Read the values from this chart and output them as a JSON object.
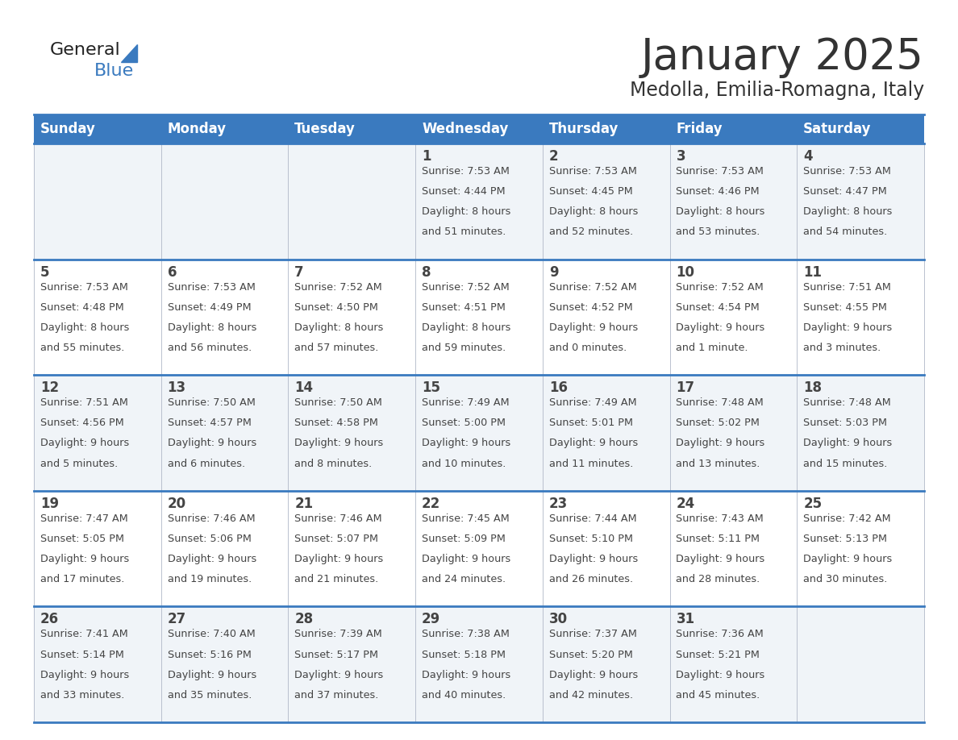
{
  "title": "January 2025",
  "subtitle": "Medolla, Emilia-Romagna, Italy",
  "days_of_week": [
    "Sunday",
    "Monday",
    "Tuesday",
    "Wednesday",
    "Thursday",
    "Friday",
    "Saturday"
  ],
  "header_bg": "#3a7abf",
  "header_text": "#ffffff",
  "cell_bg_odd": "#f0f4f8",
  "cell_bg_even": "#ffffff",
  "border_color": "#3a7abf",
  "text_color": "#444444",
  "title_color": "#333333",
  "calendar_data": [
    [
      {
        "day": "",
        "sunrise": "",
        "sunset": "",
        "daylight": ""
      },
      {
        "day": "",
        "sunrise": "",
        "sunset": "",
        "daylight": ""
      },
      {
        "day": "",
        "sunrise": "",
        "sunset": "",
        "daylight": ""
      },
      {
        "day": "1",
        "sunrise": "7:53 AM",
        "sunset": "4:44 PM",
        "daylight": "8 hours\nand 51 minutes."
      },
      {
        "day": "2",
        "sunrise": "7:53 AM",
        "sunset": "4:45 PM",
        "daylight": "8 hours\nand 52 minutes."
      },
      {
        "day": "3",
        "sunrise": "7:53 AM",
        "sunset": "4:46 PM",
        "daylight": "8 hours\nand 53 minutes."
      },
      {
        "day": "4",
        "sunrise": "7:53 AM",
        "sunset": "4:47 PM",
        "daylight": "8 hours\nand 54 minutes."
      }
    ],
    [
      {
        "day": "5",
        "sunrise": "7:53 AM",
        "sunset": "4:48 PM",
        "daylight": "8 hours\nand 55 minutes."
      },
      {
        "day": "6",
        "sunrise": "7:53 AM",
        "sunset": "4:49 PM",
        "daylight": "8 hours\nand 56 minutes."
      },
      {
        "day": "7",
        "sunrise": "7:52 AM",
        "sunset": "4:50 PM",
        "daylight": "8 hours\nand 57 minutes."
      },
      {
        "day": "8",
        "sunrise": "7:52 AM",
        "sunset": "4:51 PM",
        "daylight": "8 hours\nand 59 minutes."
      },
      {
        "day": "9",
        "sunrise": "7:52 AM",
        "sunset": "4:52 PM",
        "daylight": "9 hours\nand 0 minutes."
      },
      {
        "day": "10",
        "sunrise": "7:52 AM",
        "sunset": "4:54 PM",
        "daylight": "9 hours\nand 1 minute."
      },
      {
        "day": "11",
        "sunrise": "7:51 AM",
        "sunset": "4:55 PM",
        "daylight": "9 hours\nand 3 minutes."
      }
    ],
    [
      {
        "day": "12",
        "sunrise": "7:51 AM",
        "sunset": "4:56 PM",
        "daylight": "9 hours\nand 5 minutes."
      },
      {
        "day": "13",
        "sunrise": "7:50 AM",
        "sunset": "4:57 PM",
        "daylight": "9 hours\nand 6 minutes."
      },
      {
        "day": "14",
        "sunrise": "7:50 AM",
        "sunset": "4:58 PM",
        "daylight": "9 hours\nand 8 minutes."
      },
      {
        "day": "15",
        "sunrise": "7:49 AM",
        "sunset": "5:00 PM",
        "daylight": "9 hours\nand 10 minutes."
      },
      {
        "day": "16",
        "sunrise": "7:49 AM",
        "sunset": "5:01 PM",
        "daylight": "9 hours\nand 11 minutes."
      },
      {
        "day": "17",
        "sunrise": "7:48 AM",
        "sunset": "5:02 PM",
        "daylight": "9 hours\nand 13 minutes."
      },
      {
        "day": "18",
        "sunrise": "7:48 AM",
        "sunset": "5:03 PM",
        "daylight": "9 hours\nand 15 minutes."
      }
    ],
    [
      {
        "day": "19",
        "sunrise": "7:47 AM",
        "sunset": "5:05 PM",
        "daylight": "9 hours\nand 17 minutes."
      },
      {
        "day": "20",
        "sunrise": "7:46 AM",
        "sunset": "5:06 PM",
        "daylight": "9 hours\nand 19 minutes."
      },
      {
        "day": "21",
        "sunrise": "7:46 AM",
        "sunset": "5:07 PM",
        "daylight": "9 hours\nand 21 minutes."
      },
      {
        "day": "22",
        "sunrise": "7:45 AM",
        "sunset": "5:09 PM",
        "daylight": "9 hours\nand 24 minutes."
      },
      {
        "day": "23",
        "sunrise": "7:44 AM",
        "sunset": "5:10 PM",
        "daylight": "9 hours\nand 26 minutes."
      },
      {
        "day": "24",
        "sunrise": "7:43 AM",
        "sunset": "5:11 PM",
        "daylight": "9 hours\nand 28 minutes."
      },
      {
        "day": "25",
        "sunrise": "7:42 AM",
        "sunset": "5:13 PM",
        "daylight": "9 hours\nand 30 minutes."
      }
    ],
    [
      {
        "day": "26",
        "sunrise": "7:41 AM",
        "sunset": "5:14 PM",
        "daylight": "9 hours\nand 33 minutes."
      },
      {
        "day": "27",
        "sunrise": "7:40 AM",
        "sunset": "5:16 PM",
        "daylight": "9 hours\nand 35 minutes."
      },
      {
        "day": "28",
        "sunrise": "7:39 AM",
        "sunset": "5:17 PM",
        "daylight": "9 hours\nand 37 minutes."
      },
      {
        "day": "29",
        "sunrise": "7:38 AM",
        "sunset": "5:18 PM",
        "daylight": "9 hours\nand 40 minutes."
      },
      {
        "day": "30",
        "sunrise": "7:37 AM",
        "sunset": "5:20 PM",
        "daylight": "9 hours\nand 42 minutes."
      },
      {
        "day": "31",
        "sunrise": "7:36 AM",
        "sunset": "5:21 PM",
        "daylight": "9 hours\nand 45 minutes."
      },
      {
        "day": "",
        "sunrise": "",
        "sunset": "",
        "daylight": ""
      }
    ]
  ],
  "title_fontsize": 38,
  "subtitle_fontsize": 17,
  "header_fontsize": 12,
  "day_num_fontsize": 12,
  "cell_fontsize": 9.2,
  "logo_general_fontsize": 16,
  "logo_blue_fontsize": 16
}
